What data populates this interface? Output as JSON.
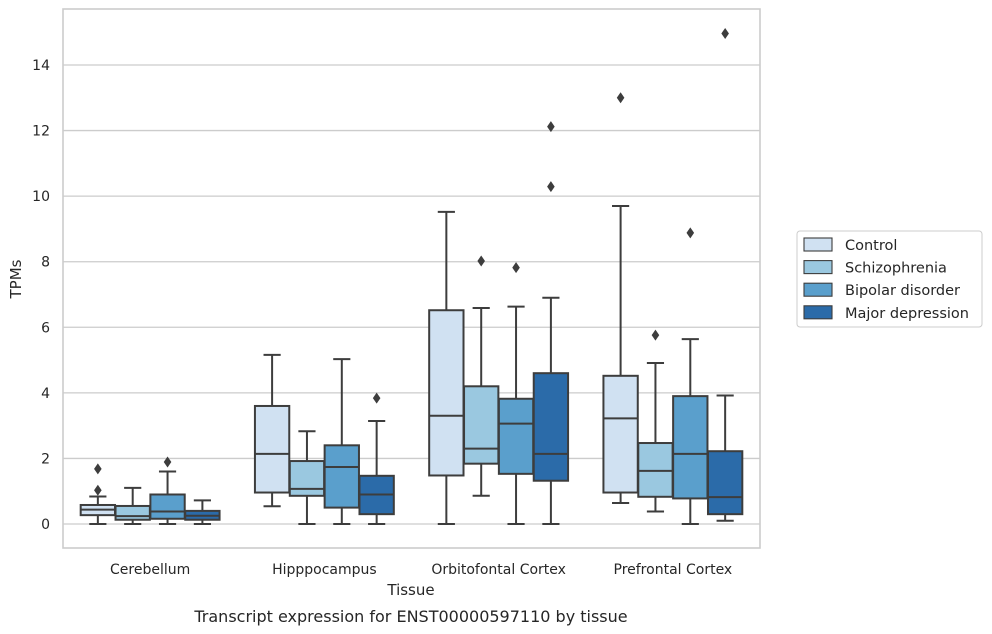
{
  "caption": "Transcript expression for ENST00000597110 by tissue",
  "chart_data": {
    "type": "box",
    "xlabel": "Tissue",
    "ylabel": "TPMs",
    "ylim": [
      -0.7,
      15.5
    ],
    "yticks": [
      0,
      2,
      4,
      6,
      8,
      10,
      12,
      14
    ],
    "grid": "horizontal",
    "legend_position": "right",
    "categories": [
      "Cerebellum",
      "Hipppocampus",
      "Orbitofontal Cortex",
      "Prefrontal Cortex"
    ],
    "series": [
      {
        "name": "Control",
        "color": "#d0e1f2",
        "boxes": [
          {
            "whisker_low": 0.0,
            "q1": 0.27,
            "median": 0.44,
            "q3": 0.58,
            "whisker_high": 0.84,
            "outliers": [
              1.03,
              1.68
            ]
          },
          {
            "whisker_low": 0.54,
            "q1": 0.96,
            "median": 2.14,
            "q3": 3.6,
            "whisker_high": 5.16,
            "outliers": []
          },
          {
            "whisker_low": 0.0,
            "q1": 1.48,
            "median": 3.3,
            "q3": 6.52,
            "whisker_high": 9.52,
            "outliers": []
          },
          {
            "whisker_low": 0.64,
            "q1": 0.96,
            "median": 3.22,
            "q3": 4.52,
            "whisker_high": 9.7,
            "outliers": [
              13.0
            ]
          }
        ]
      },
      {
        "name": "Schizophrenia",
        "color": "#9ac8e0",
        "boxes": [
          {
            "whisker_low": 0.0,
            "q1": 0.13,
            "median": 0.24,
            "q3": 0.55,
            "whisker_high": 1.1,
            "outliers": []
          },
          {
            "whisker_low": 0.0,
            "q1": 0.86,
            "median": 1.07,
            "q3": 1.92,
            "whisker_high": 2.83,
            "outliers": []
          },
          {
            "whisker_low": 0.86,
            "q1": 1.84,
            "median": 2.3,
            "q3": 4.2,
            "whisker_high": 6.59,
            "outliers": [
              8.02
            ]
          },
          {
            "whisker_low": 0.38,
            "q1": 0.83,
            "median": 1.62,
            "q3": 2.47,
            "whisker_high": 4.91,
            "outliers": [
              5.76
            ]
          }
        ]
      },
      {
        "name": "Bipolar disorder",
        "color": "#5a9fcc",
        "boxes": [
          {
            "whisker_low": 0.0,
            "q1": 0.16,
            "median": 0.38,
            "q3": 0.9,
            "whisker_high": 1.6,
            "outliers": [
              1.89
            ]
          },
          {
            "whisker_low": 0.0,
            "q1": 0.5,
            "median": 1.74,
            "q3": 2.4,
            "whisker_high": 5.03,
            "outliers": [],
            "note": ""
          },
          {
            "whisker_low": 0.0,
            "q1": 1.53,
            "median": 3.06,
            "q3": 3.82,
            "whisker_high": 6.63,
            "outliers": [
              7.82
            ]
          },
          {
            "whisker_low": 0.0,
            "q1": 0.78,
            "median": 2.14,
            "q3": 3.9,
            "whisker_high": 5.64,
            "outliers": [
              8.88
            ]
          }
        ]
      },
      {
        "name": "Major depression",
        "color": "#2b6ba9",
        "boxes": [
          {
            "whisker_low": 0.0,
            "q1": 0.13,
            "median": 0.25,
            "q3": 0.4,
            "whisker_high": 0.72,
            "outliers": []
          },
          {
            "whisker_low": 0.0,
            "q1": 0.3,
            "median": 0.9,
            "q3": 1.47,
            "whisker_high": 3.14,
            "outliers": [
              3.84
            ]
          },
          {
            "whisker_low": 0.0,
            "q1": 1.32,
            "median": 2.14,
            "q3": 4.6,
            "whisker_high": 6.9,
            "outliers": [
              10.29,
              12.12
            ]
          },
          {
            "whisker_low": 0.1,
            "q1": 0.3,
            "median": 0.82,
            "q3": 2.22,
            "whisker_high": 3.92,
            "outliers": [
              14.96
            ]
          }
        ]
      }
    ]
  }
}
